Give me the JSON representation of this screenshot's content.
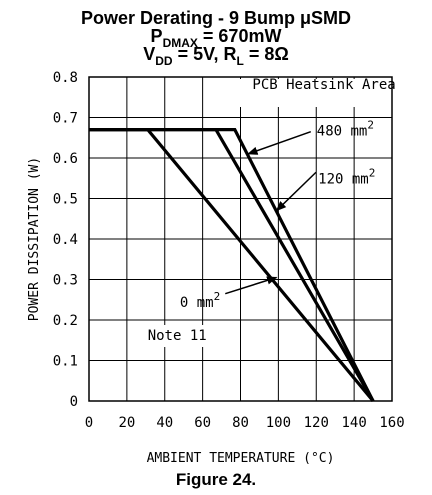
{
  "header": {
    "title": "Power Derating - 9 Bump μSMD",
    "line2": {
      "p": "P",
      "sub": "DMAX",
      "rest": " = 670mW"
    },
    "line3": {
      "v": "V",
      "vsub": "DD",
      "mid": " = 5V, R",
      "rsub": "L",
      "rest": " = 8Ω"
    }
  },
  "figure_caption": "Figure 24.",
  "chart_data": {
    "type": "line",
    "title": "Power Derating - 9 Bump μSMD",
    "xlabel": "AMBIENT TEMPERATURE (°C)",
    "ylabel": "POWER DISSIPATION (W)",
    "xlim": [
      0,
      160
    ],
    "ylim": [
      0,
      0.8
    ],
    "x_ticks": [
      0,
      20,
      40,
      60,
      80,
      100,
      120,
      140,
      160
    ],
    "y_ticks": [
      0,
      0.1,
      0.2,
      0.3,
      0.4,
      0.5,
      0.6,
      0.7,
      0.8
    ],
    "y_tick_labels": [
      "0",
      "0.1",
      "0.2",
      "0.3",
      "0.4",
      "0.5",
      "0.6",
      "0.7",
      "0.8"
    ],
    "grid": true,
    "series": [
      {
        "name": "480 mm2",
        "x": [
          0,
          77,
          150
        ],
        "y": [
          0.67,
          0.67,
          0
        ]
      },
      {
        "name": "120 mm2",
        "x": [
          0,
          67,
          150
        ],
        "y": [
          0.67,
          0.67,
          0
        ]
      },
      {
        "name": "0 mm2",
        "x": [
          0,
          31,
          150
        ],
        "y": [
          0.67,
          0.67,
          0
        ]
      }
    ],
    "annotations": {
      "area_label": "PCB Heatsink Area",
      "note": "Note 11",
      "labels": [
        {
          "base": "480 mm",
          "sup": "2"
        },
        {
          "base": "120 mm",
          "sup": "2"
        },
        {
          "base": "0 mm",
          "sup": "2"
        }
      ]
    }
  }
}
